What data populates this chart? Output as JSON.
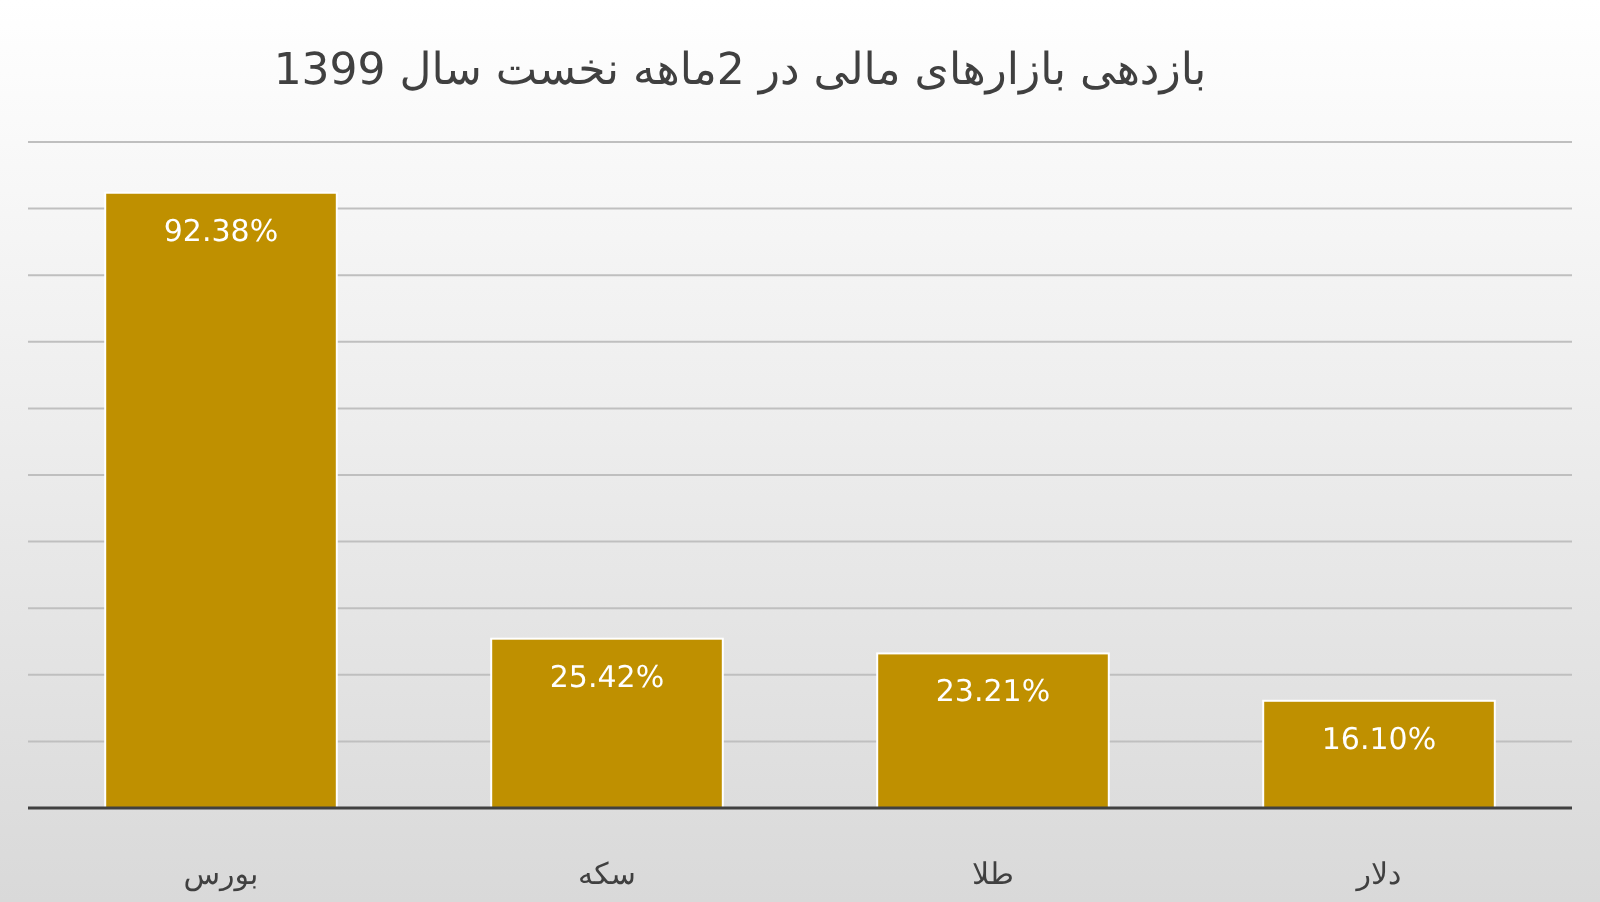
{
  "chart_data": {
    "type": "bar",
    "title": "بازدهی بازارهای مالی در 2ماهه نخست سال 1399",
    "categories": [
      "بورس",
      "سکه",
      "طلا",
      "دلار"
    ],
    "values": [
      92.38,
      25.42,
      23.21,
      16.1
    ],
    "value_labels": [
      "92.38%",
      "25.42%",
      "23.21%",
      "16.10%"
    ],
    "color": "#bf9000",
    "ylim": [
      0,
      100
    ],
    "yticks": [
      {
        "value": 0,
        "label": null
      },
      {
        "value": 10,
        "label": null
      },
      {
        "value": 20,
        "label": null
      },
      {
        "value": 30,
        "label": null
      },
      {
        "value": 40,
        "label": null
      },
      {
        "value": 50,
        "label": null
      },
      {
        "value": 60,
        "label": null
      },
      {
        "value": 70,
        "label": null
      },
      {
        "value": 80,
        "label": null
      },
      {
        "value": 90,
        "label": null
      },
      {
        "value": 100,
        "label": null
      }
    ],
    "grid": "y"
  }
}
